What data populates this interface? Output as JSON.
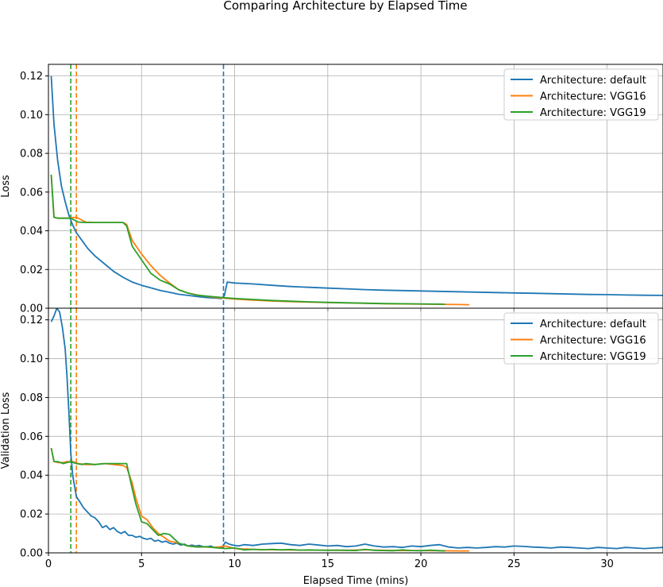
{
  "title": "Comparing Architecture by Elapsed Time",
  "colors": {
    "default": "#1f77b4",
    "VGG16": "#ff7f0e",
    "VGG19": "#2ca02c",
    "grid": "#b0b0b0"
  },
  "chart_data": [
    {
      "type": "line",
      "panel": "top",
      "xlabel": "",
      "ylabel": "Loss",
      "xlim": [
        0,
        33
      ],
      "ylim": [
        0,
        0.126
      ],
      "xticks": [
        0,
        5,
        10,
        15,
        20,
        25,
        30
      ],
      "yticks": [
        0.0,
        0.02,
        0.04,
        0.06,
        0.08,
        0.1,
        0.12
      ],
      "grid": true,
      "legend": "top-right",
      "vlines": [
        {
          "x": 1.2,
          "series": "VGG19"
        },
        {
          "x": 1.5,
          "series": "VGG16"
        },
        {
          "x": 9.4,
          "series": "default"
        }
      ],
      "series": [
        {
          "name": "Architecture: default",
          "key": "default",
          "x": [
            0.15,
            0.3,
            0.5,
            0.7,
            0.9,
            1.1,
            1.3,
            1.5,
            1.8,
            2.1,
            2.5,
            3.0,
            3.5,
            4.0,
            4.5,
            5.0,
            5.5,
            6.0,
            6.5,
            7.0,
            7.5,
            8.0,
            8.5,
            9.0,
            9.3,
            9.45,
            9.6,
            10.0,
            11,
            12,
            13,
            14,
            15,
            16,
            17,
            18,
            19,
            20,
            21,
            22,
            23,
            24,
            25,
            26,
            27,
            28,
            29,
            30,
            31,
            32,
            33
          ],
          "y": [
            0.12,
            0.095,
            0.076,
            0.063,
            0.055,
            0.048,
            0.043,
            0.039,
            0.035,
            0.031,
            0.027,
            0.023,
            0.019,
            0.016,
            0.0135,
            0.0118,
            0.0105,
            0.0092,
            0.0082,
            0.0072,
            0.0066,
            0.006,
            0.0055,
            0.0052,
            0.005,
            0.0065,
            0.0135,
            0.013,
            0.0125,
            0.0118,
            0.0112,
            0.0108,
            0.0104,
            0.01,
            0.0096,
            0.0093,
            0.0091,
            0.0089,
            0.0087,
            0.0085,
            0.0083,
            0.0081,
            0.0079,
            0.0077,
            0.0075,
            0.0073,
            0.0071,
            0.007,
            0.0068,
            0.0067,
            0.0066
          ]
        },
        {
          "name": "Architecture: VGG16",
          "key": "VGG16",
          "x": [
            0.15,
            0.3,
            0.5,
            1.0,
            1.5,
            2.0,
            2.5,
            3.0,
            3.5,
            4.0,
            4.2,
            4.5,
            5.0,
            5.5,
            6.0,
            6.5,
            7.0,
            7.5,
            8.0,
            9.0,
            10,
            11,
            12,
            13,
            14,
            15,
            16,
            17,
            18,
            19,
            20,
            21,
            22,
            22.6
          ],
          "y": [
            0.069,
            0.047,
            0.0465,
            0.0465,
            0.047,
            0.0445,
            0.0443,
            0.0443,
            0.0443,
            0.0443,
            0.0433,
            0.035,
            0.028,
            0.022,
            0.017,
            0.013,
            0.0095,
            0.0078,
            0.0068,
            0.0055,
            0.0047,
            0.0042,
            0.0037,
            0.0034,
            0.0031,
            0.0029,
            0.0027,
            0.0025,
            0.0023,
            0.0022,
            0.0021,
            0.002,
            0.0019,
            0.0018
          ]
        },
        {
          "name": "Architecture: VGG19",
          "key": "VGG19",
          "x": [
            0.15,
            0.3,
            0.5,
            1.0,
            1.2,
            1.6,
            2.0,
            2.5,
            3.0,
            3.5,
            4.0,
            4.2,
            4.5,
            5.0,
            5.5,
            6.0,
            6.5,
            7.0,
            7.5,
            8.0,
            9.0,
            10,
            11,
            12,
            13,
            14,
            15,
            16,
            17,
            18,
            19,
            20,
            21,
            21.3
          ],
          "y": [
            0.069,
            0.047,
            0.0465,
            0.0465,
            0.0465,
            0.0445,
            0.0443,
            0.0443,
            0.0443,
            0.0443,
            0.0443,
            0.0425,
            0.032,
            0.025,
            0.018,
            0.0145,
            0.0125,
            0.0095,
            0.0078,
            0.0067,
            0.0058,
            0.005,
            0.0045,
            0.004,
            0.0036,
            0.0033,
            0.003,
            0.0028,
            0.0026,
            0.0024,
            0.0023,
            0.0022,
            0.0021,
            0.002
          ]
        }
      ]
    },
    {
      "type": "line",
      "panel": "bottom",
      "xlabel": "Elapsed Time (mins)",
      "ylabel": "Validation Loss",
      "xlim": [
        0,
        33
      ],
      "ylim": [
        0,
        0.126
      ],
      "xticks": [
        0,
        5,
        10,
        15,
        20,
        25,
        30
      ],
      "yticks": [
        0.0,
        0.02,
        0.04,
        0.06,
        0.08,
        0.1,
        0.12
      ],
      "grid": true,
      "legend": "top-right",
      "vlines": [
        {
          "x": 1.2,
          "series": "VGG19"
        },
        {
          "x": 1.5,
          "series": "VGG16"
        },
        {
          "x": 9.4,
          "series": "default"
        }
      ],
      "series": [
        {
          "name": "Architecture: default",
          "key": "default",
          "x": [
            0.15,
            0.3,
            0.45,
            0.6,
            0.75,
            0.9,
            1.0,
            1.1,
            1.2,
            1.3,
            1.5,
            1.7,
            1.9,
            2.1,
            2.3,
            2.5,
            2.7,
            2.9,
            3.1,
            3.3,
            3.5,
            3.7,
            3.9,
            4.1,
            4.3,
            4.5,
            4.7,
            4.9,
            5.1,
            5.3,
            5.5,
            5.7,
            5.9,
            6.1,
            6.3,
            6.5,
            6.7,
            6.9,
            7.1,
            7.3,
            7.5,
            7.7,
            7.9,
            8.1,
            8.3,
            8.5,
            8.7,
            8.9,
            9.1,
            9.3,
            9.5,
            9.7,
            9.9,
            10.2,
            10.5,
            11,
            11.5,
            12,
            12.5,
            13,
            13.5,
            14,
            14.5,
            15,
            15.5,
            16,
            16.5,
            17,
            17.5,
            18,
            18.5,
            19,
            19.5,
            20,
            20.5,
            21,
            21.5,
            22,
            22.5,
            23,
            23.5,
            24,
            24.5,
            25,
            25.5,
            26,
            26.5,
            27,
            27.5,
            28,
            28.5,
            29,
            29.5,
            30,
            30.5,
            31,
            31.5,
            32,
            32.5,
            33
          ],
          "y": [
            0.119,
            0.122,
            0.126,
            0.124,
            0.116,
            0.105,
            0.09,
            0.072,
            0.052,
            0.04,
            0.029,
            0.026,
            0.023,
            0.021,
            0.019,
            0.018,
            0.016,
            0.013,
            0.014,
            0.012,
            0.013,
            0.011,
            0.01,
            0.011,
            0.009,
            0.009,
            0.008,
            0.0085,
            0.0075,
            0.007,
            0.0075,
            0.006,
            0.0065,
            0.0055,
            0.006,
            0.005,
            0.0045,
            0.005,
            0.004,
            0.0045,
            0.0035,
            0.004,
            0.0035,
            0.0038,
            0.0032,
            0.003,
            0.0035,
            0.0028,
            0.003,
            0.0025,
            0.0055,
            0.0045,
            0.004,
            0.0035,
            0.0042,
            0.0038,
            0.0045,
            0.0048,
            0.005,
            0.0042,
            0.0038,
            0.0045,
            0.004,
            0.0035,
            0.0038,
            0.0032,
            0.0035,
            0.0045,
            0.0035,
            0.003,
            0.0032,
            0.0028,
            0.0035,
            0.0032,
            0.0038,
            0.0042,
            0.003,
            0.0025,
            0.0028,
            0.0025,
            0.0028,
            0.0032,
            0.003,
            0.0035,
            0.0033,
            0.003,
            0.0028,
            0.0025,
            0.003,
            0.0028,
            0.0025,
            0.0022,
            0.0028,
            0.0025,
            0.0022,
            0.0028,
            0.0025,
            0.0022,
            0.0025,
            0.0028
          ]
        },
        {
          "name": "Architecture: VGG16",
          "key": "VGG16",
          "x": [
            0.15,
            0.3,
            0.5,
            0.8,
            1.0,
            1.3,
            1.6,
            2.0,
            2.5,
            3.0,
            3.5,
            4.0,
            4.2,
            4.5,
            4.7,
            5.0,
            5.3,
            5.6,
            5.9,
            6.2,
            6.5,
            7.0,
            7.5,
            8.0,
            8.5,
            9.0,
            9.5,
            10,
            10.5,
            11,
            12,
            13,
            14,
            15,
            16,
            17,
            18,
            19,
            20,
            21,
            22,
            22.6
          ],
          "y": [
            0.054,
            0.047,
            0.0465,
            0.0465,
            0.047,
            0.047,
            0.046,
            0.0455,
            0.0455,
            0.046,
            0.0455,
            0.045,
            0.044,
            0.036,
            0.028,
            0.019,
            0.017,
            0.013,
            0.01,
            0.008,
            0.006,
            0.005,
            0.0035,
            0.0032,
            0.003,
            0.0028,
            0.0035,
            0.0022,
            0.002,
            0.0018,
            0.0016,
            0.0015,
            0.0014,
            0.0014,
            0.0013,
            0.0016,
            0.0013,
            0.0012,
            0.0012,
            0.0011,
            0.001,
            0.001
          ]
        },
        {
          "name": "Architecture: VGG19",
          "key": "VGG19",
          "x": [
            0.15,
            0.3,
            0.5,
            0.8,
            1.0,
            1.2,
            1.5,
            1.8,
            2.0,
            2.5,
            3.0,
            3.5,
            4.0,
            4.2,
            4.5,
            4.7,
            5.0,
            5.3,
            5.6,
            5.9,
            6.2,
            6.5,
            7.0,
            7.5,
            8.0,
            8.5,
            9.0,
            9.5,
            10,
            10.5,
            11,
            11.5,
            12,
            12.5,
            13,
            13.5,
            14,
            14.5,
            15,
            15.5,
            16,
            16.5,
            17,
            17.5,
            18,
            18.5,
            19,
            19.5,
            20,
            20.5,
            21,
            21.3
          ],
          "y": [
            0.054,
            0.047,
            0.047,
            0.046,
            0.0465,
            0.047,
            0.046,
            0.0455,
            0.046,
            0.0455,
            0.046,
            0.046,
            0.046,
            0.046,
            0.033,
            0.025,
            0.016,
            0.015,
            0.012,
            0.009,
            0.01,
            0.0095,
            0.005,
            0.0035,
            0.003,
            0.0032,
            0.0026,
            0.0022,
            0.0025,
            0.0015,
            0.0018,
            0.0016,
            0.0018,
            0.0015,
            0.0017,
            0.0014,
            0.0015,
            0.0014,
            0.0013,
            0.0014,
            0.0013,
            0.0012,
            0.0018,
            0.0013,
            0.0012,
            0.0011,
            0.0015,
            0.0012,
            0.0011,
            0.0014,
            0.0011,
            0.001
          ]
        }
      ]
    }
  ]
}
